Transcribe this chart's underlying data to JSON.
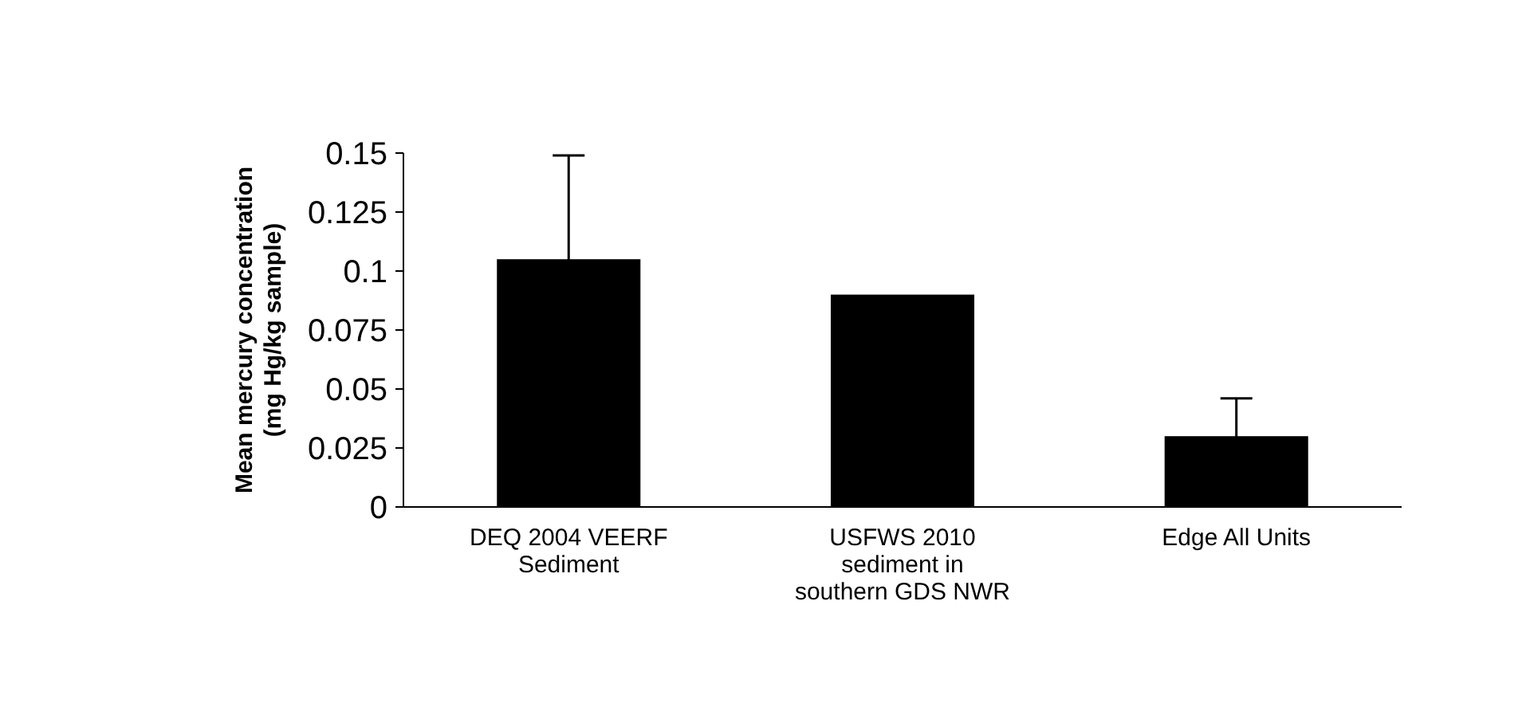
{
  "chart_data": {
    "type": "bar",
    "ylabel": "Mean mercury concentration (mg Hg/kg sample)",
    "categories": [
      "DEQ 2004 VEERF Sediment",
      "USFWS 2010 sediment in southern GDS NWR",
      "Edge All Units"
    ],
    "values": [
      0.105,
      0.09,
      0.03
    ],
    "errors": [
      0.044,
      null,
      0.016
    ],
    "color": "#000000",
    "ylim": [
      0,
      0.15
    ],
    "yticks": [
      0,
      0.025,
      0.05,
      0.075,
      0.1,
      0.125,
      0.15
    ],
    "grid": false
  }
}
